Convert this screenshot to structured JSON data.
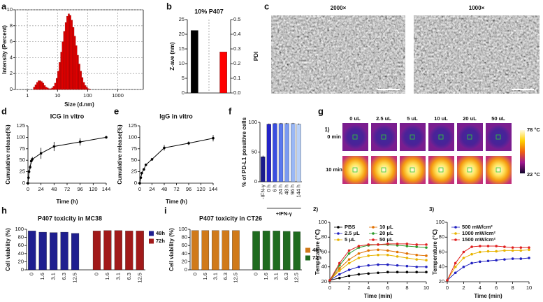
{
  "chart_data": [
    {
      "type": "histogram",
      "label": "a",
      "xlabel": "Size (d.nm)",
      "ylabel": "Intensity (Percent)",
      "color": "#e00000",
      "xscale": "log",
      "grid": true,
      "bins": [
        1.58,
        1.78,
        2.0,
        2.24,
        2.51,
        2.82,
        3.16,
        3.55,
        3.98,
        4.47,
        5.01,
        5.62,
        6.31,
        7.08,
        7.94,
        8.91,
        10,
        11.2,
        12.6,
        14.1,
        15.8,
        17.8,
        20,
        22.4,
        25.1,
        28.2,
        31.6,
        35.5,
        39.8,
        44.7,
        50.1,
        56.2,
        63.1,
        70.8,
        79.4,
        89.1,
        100,
        112,
        126
      ],
      "values": [
        0.3,
        0.6,
        0.9,
        1.1,
        1.1,
        1.0,
        0.8,
        0.5,
        0.3,
        0.2,
        0.1,
        0.1,
        0.2,
        0.4,
        0.8,
        1.4,
        2.3,
        3.4,
        4.7,
        6.0,
        7.3,
        8.4,
        9.2,
        9.5,
        9.3,
        8.7,
        7.8,
        6.7,
        5.5,
        4.3,
        3.2,
        2.3,
        1.5,
        0.9,
        0.5,
        0.3,
        0.1,
        0.05
      ],
      "xlim": [
        0.4,
        7000
      ],
      "xticks": [
        1,
        10,
        100,
        1000
      ],
      "ylim": [
        0,
        10
      ],
      "yticks": [
        0,
        2,
        4,
        6,
        8,
        10
      ]
    },
    {
      "type": "bar",
      "label": "b",
      "title": "10% P407",
      "ylabel": "Z-ave (nm)",
      "y2label": "PDI",
      "categories": [
        null
      ],
      "series": [
        {
          "color": "#000000",
          "values": [
            21.3
          ]
        },
        {
          "color": "#ff0000",
          "values": [
            0.28
          ],
          "axis": "y2"
        }
      ],
      "ylim": [
        0,
        25
      ],
      "yticks": [
        0,
        5,
        10,
        15,
        20,
        25
      ],
      "y2lim": [
        0,
        0.5
      ],
      "y2ticks": [
        {
          "value": 0,
          "label": "0.0"
        },
        0.1,
        0.2,
        0.3,
        0.4,
        0.5
      ]
    },
    {
      "type": "line",
      "label": "d",
      "title": "ICG in vitro",
      "xlabel": "Time (h)",
      "ylabel": "Cumulative release(%)",
      "color": "#000000",
      "x": [
        0,
        1,
        2,
        4,
        6,
        8,
        24,
        48,
        96,
        144
      ],
      "values": [
        0,
        12,
        25,
        35,
        48,
        52,
        65,
        80,
        90,
        100
      ],
      "errors": [
        0,
        2,
        4,
        5,
        6,
        5,
        12,
        10,
        8,
        3
      ],
      "xlim": [
        0,
        144
      ],
      "xticks": [
        0,
        24,
        48,
        72,
        96,
        120,
        144
      ],
      "ylim": [
        0,
        125
      ],
      "yticks": [
        0,
        25,
        50,
        75,
        100,
        125
      ]
    },
    {
      "type": "line",
      "label": "e",
      "title": "IgG in vitro",
      "xlabel": "Time (h)",
      "ylabel": "Cumulative release(%)",
      "color": "#000000",
      "x": [
        0,
        2,
        4,
        8,
        12,
        24,
        48,
        96,
        144
      ],
      "values": [
        0,
        12,
        22,
        30,
        40,
        52,
        77,
        87,
        98
      ],
      "errors": [
        0,
        1,
        2,
        2,
        2,
        3,
        6,
        4,
        7
      ],
      "xlim": [
        0,
        144
      ],
      "xticks": [
        0,
        24,
        48,
        72,
        96,
        120,
        144
      ],
      "ylim": [
        0,
        125
      ],
      "yticks": [
        0,
        25,
        50,
        75,
        100,
        125
      ]
    },
    {
      "type": "bar",
      "label": "f",
      "ylabel": "% of PD-L1 possitive cells",
      "annotation": "+IFN-γ",
      "categories": [
        "-IFN-γ",
        "0 h",
        "6 h",
        "24 h",
        "48 h",
        "96 h",
        "144 h"
      ],
      "values": [
        42,
        97,
        98,
        98,
        98,
        98,
        97
      ],
      "errors": [
        2,
        1,
        1,
        1,
        1,
        1,
        1
      ],
      "colors": [
        "#1a1a8c",
        "#2323c8",
        "#3a4ee0",
        "#5a78ee",
        "#7a9af2",
        "#9ab8f6",
        "#b8d0f8"
      ],
      "ylim": [
        0,
        100
      ],
      "yticks": [
        0,
        50,
        100
      ]
    },
    {
      "type": "line",
      "label": "2)",
      "xlabel": "Time (min)",
      "ylabel": "Temperature (℃)",
      "legend": "upper left",
      "x": [
        0,
        1,
        2,
        3,
        4,
        5,
        6,
        7,
        8,
        9,
        10
      ],
      "series": [
        {
          "name": "PBS",
          "color": "#000000",
          "values": [
            22,
            25,
            28,
            30,
            31,
            32,
            33,
            33,
            33,
            33,
            33
          ]
        },
        {
          "name": "2.5 μL",
          "color": "#2020c0",
          "values": [
            22,
            30,
            36,
            40,
            42,
            43,
            43,
            42,
            41,
            40,
            40
          ]
        },
        {
          "name": "5 μL",
          "color": "#e8b400",
          "values": [
            22,
            35,
            45,
            52,
            55,
            56,
            56,
            54,
            52,
            50,
            49
          ]
        },
        {
          "name": "10 μL",
          "color": "#e07000",
          "values": [
            22,
            38,
            50,
            58,
            62,
            63,
            62,
            60,
            58,
            56,
            55
          ]
        },
        {
          "name": "20 μL",
          "color": "#2a9a2a",
          "values": [
            22,
            42,
            58,
            66,
            69,
            70,
            70,
            69,
            68,
            67,
            66
          ]
        },
        {
          "name": "50 μL",
          "color": "#e02020",
          "values": [
            22,
            45,
            62,
            68,
            70,
            70,
            71,
            71,
            71,
            70,
            70
          ]
        }
      ],
      "xlim": [
        0,
        10
      ],
      "xticks": [
        0,
        2,
        4,
        6,
        8,
        10
      ],
      "ylim": [
        20,
        100
      ],
      "yticks": [
        20,
        40,
        60,
        80,
        100
      ]
    },
    {
      "type": "line",
      "label": "3)",
      "xlabel": "Time (min)",
      "ylabel": "Temperature (℃)",
      "legend": "upper left",
      "x": [
        0,
        1,
        2,
        3,
        4,
        5,
        6,
        7,
        8,
        9,
        10
      ],
      "series": [
        {
          "name": "500 mW/cm²",
          "color": "#2020c0",
          "values": [
            22,
            32,
            40,
            45,
            47,
            48,
            49,
            50,
            51,
            51,
            52
          ]
        },
        {
          "name": "1000 mW/cm²",
          "color": "#e8b400",
          "values": [
            22,
            40,
            52,
            57,
            60,
            61,
            61,
            62,
            62,
            62,
            63
          ]
        },
        {
          "name": "1500 mW/cm²",
          "color": "#e02020",
          "values": [
            22,
            45,
            60,
            67,
            68,
            68,
            68,
            67,
            66,
            66,
            66
          ]
        }
      ],
      "xlim": [
        0,
        10
      ],
      "xticks": [
        0,
        2,
        4,
        6,
        8,
        10
      ],
      "ylim": [
        20,
        100
      ],
      "yticks": [
        20,
        40,
        60,
        80,
        100
      ]
    },
    {
      "type": "bar",
      "label": "h",
      "title": "P407 toxicity in MC38",
      "ylabel": "Cell viability (%)",
      "legend": "right",
      "categories": [
        "0",
        "1.6",
        "3.1",
        "6.3",
        "12.5"
      ],
      "series": [
        {
          "name": "48h",
          "color": "#1f1f8f",
          "values": [
            96,
            93,
            92,
            93,
            90
          ]
        },
        {
          "name": "72h",
          "color": "#a11a1a",
          "values": [
            96,
            97,
            97,
            96,
            96
          ]
        }
      ],
      "ylim": [
        0,
        100
      ],
      "yticks": [
        0,
        20,
        40,
        60,
        80,
        100
      ]
    },
    {
      "type": "bar",
      "label": "i",
      "title": "P407 toxicity in CT26",
      "ylabel": "Cell viability (%)",
      "legend": "right",
      "categories": [
        "0",
        "1.6",
        "3.1",
        "6.3",
        "12.5"
      ],
      "series": [
        {
          "name": "48h",
          "color": "#d07a1a",
          "values": [
            97,
            97,
            97,
            97,
            97
          ]
        },
        {
          "name": "72h",
          "color": "#1f6b1f",
          "values": [
            95,
            96,
            96,
            95,
            94
          ]
        }
      ],
      "ylim": [
        0,
        100
      ],
      "yticks": [
        0,
        20,
        40,
        60,
        80,
        100
      ]
    }
  ],
  "panel_c": {
    "label": "c",
    "images": [
      {
        "caption": "2000×"
      },
      {
        "caption": "1000×"
      }
    ]
  },
  "panel_g": {
    "label": "g",
    "part": "1)",
    "columns": [
      "0 uL",
      "2.5 uL",
      "5 uL",
      "10 uL",
      "20 uL",
      "50 uL"
    ],
    "rows": [
      "0 min",
      "10 min"
    ],
    "scale": {
      "max": "78 °C",
      "min": "22 °C"
    }
  }
}
